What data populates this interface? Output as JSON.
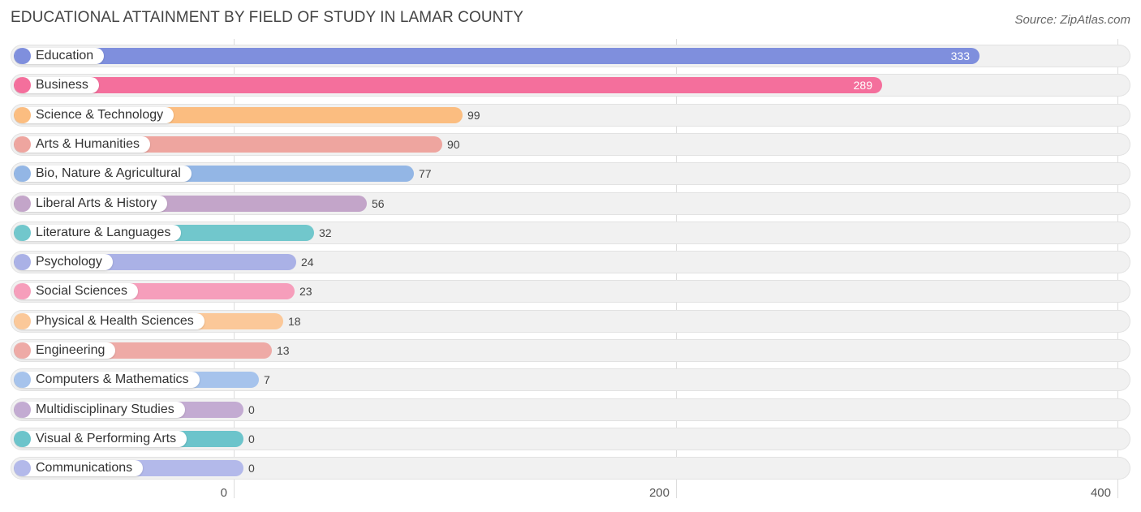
{
  "title": "EDUCATIONAL ATTAINMENT BY FIELD OF STUDY IN LAMAR COUNTY",
  "source": "Source: ZipAtlas.com",
  "chart_data": {
    "type": "bar",
    "orientation": "horizontal",
    "title": "EDUCATIONAL ATTAINMENT BY FIELD OF STUDY IN LAMAR COUNTY",
    "xlim": [
      0,
      400
    ],
    "grid": true,
    "ticks": [
      {
        "value": 0,
        "label": "0"
      },
      {
        "value": 200,
        "label": "200"
      },
      {
        "value": 400,
        "label": "400"
      }
    ],
    "categories": [
      "Education",
      "Business",
      "Science & Technology",
      "Arts & Humanities",
      "Bio, Nature & Agricultural",
      "Liberal Arts & History",
      "Literature & Languages",
      "Psychology",
      "Social Sciences",
      "Physical & Health Sciences",
      "Engineering",
      "Computers & Mathematics",
      "Multidisciplinary Studies",
      "Visual & Performing Arts",
      "Communications"
    ],
    "values": [
      333,
      289,
      99,
      90,
      77,
      56,
      32,
      24,
      23,
      18,
      13,
      7,
      0,
      0,
      0
    ],
    "colors": [
      "#7f8fdd",
      "#f46f9c",
      "#fbbd80",
      "#eea59f",
      "#93b6e5",
      "#c3a5c9",
      "#71c7cc",
      "#aab1e6",
      "#f69ebb",
      "#fbc899",
      "#eeaaa6",
      "#a6c3ec",
      "#c3abd2",
      "#6cc4cb",
      "#b3b9ea"
    ]
  }
}
